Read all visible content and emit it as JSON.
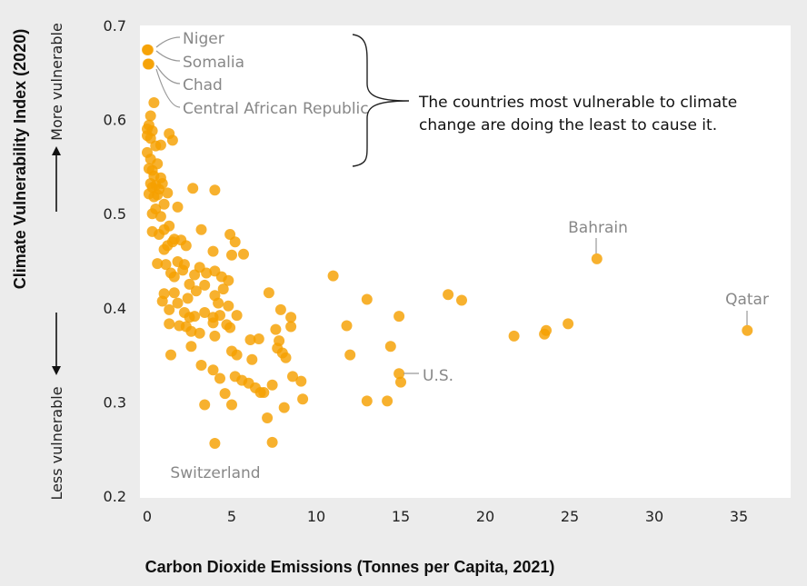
{
  "chart_data": {
    "type": "scatter",
    "xlabel": "Carbon Dioxide Emissions (Tonnes per Capita, 2021)",
    "ylabel": "Climate Vulnerability Index (2020)",
    "xlim": [
      0,
      38
    ],
    "ylim": [
      0.2,
      0.7
    ],
    "xticks": [
      0,
      5,
      10,
      15,
      20,
      25,
      30,
      35
    ],
    "yticks": [
      0.2,
      0.3,
      0.4,
      0.5,
      0.6,
      0.7
    ],
    "grid": false,
    "colors": {
      "point": "#f5a000",
      "point_dense": "#ee7f0a",
      "plot_bg": "#ffffff",
      "page_bg": "#ececec",
      "label": "#888888"
    },
    "more_vulnerable_label": "More vulnerable",
    "less_vulnerable_label": "Less vulnerable",
    "callout_lines": [
      "The countries most vulnerable to climate",
      "change are doing the least to cause it."
    ],
    "labeled_points": [
      {
        "name": "Niger",
        "x": 0.05,
        "y": 0.674
      },
      {
        "name": "Somalia",
        "x": 0.0,
        "y": 0.674
      },
      {
        "name": "Chad",
        "x": 0.1,
        "y": 0.659
      },
      {
        "name": "Central African Republic",
        "x": 0.05,
        "y": 0.659
      },
      {
        "name": "Bahrain",
        "x": 26.6,
        "y": 0.452
      },
      {
        "name": "Qatar",
        "x": 35.5,
        "y": 0.376
      },
      {
        "name": "U.S.",
        "x": 14.9,
        "y": 0.33
      },
      {
        "name": "Switzerland",
        "x": 4.0,
        "y": 0.256
      }
    ],
    "points": [
      [
        0.0,
        0.674
      ],
      [
        0.05,
        0.674
      ],
      [
        0.1,
        0.659
      ],
      [
        0.05,
        0.659
      ],
      [
        0.4,
        0.618
      ],
      [
        0.2,
        0.604
      ],
      [
        0.1,
        0.594
      ],
      [
        0.0,
        0.59
      ],
      [
        0.3,
        0.588
      ],
      [
        0.0,
        0.583
      ],
      [
        0.2,
        0.58
      ],
      [
        0.8,
        0.573
      ],
      [
        0.5,
        0.572
      ],
      [
        1.3,
        0.585
      ],
      [
        1.5,
        0.578
      ],
      [
        0.0,
        0.565
      ],
      [
        0.2,
        0.558
      ],
      [
        0.1,
        0.548
      ],
      [
        0.6,
        0.553
      ],
      [
        0.3,
        0.546
      ],
      [
        0.4,
        0.54
      ],
      [
        0.8,
        0.538
      ],
      [
        0.2,
        0.532
      ],
      [
        0.5,
        0.53
      ],
      [
        0.3,
        0.528
      ],
      [
        0.7,
        0.526
      ],
      [
        0.9,
        0.532
      ],
      [
        0.1,
        0.521
      ],
      [
        0.4,
        0.518
      ],
      [
        0.6,
        0.52
      ],
      [
        1.2,
        0.522
      ],
      [
        1.0,
        0.51
      ],
      [
        0.5,
        0.505
      ],
      [
        0.3,
        0.5
      ],
      [
        1.8,
        0.507
      ],
      [
        0.8,
        0.497
      ],
      [
        2.7,
        0.527
      ],
      [
        4.0,
        0.525
      ],
      [
        1.3,
        0.487
      ],
      [
        1.0,
        0.483
      ],
      [
        0.7,
        0.478
      ],
      [
        0.3,
        0.481
      ],
      [
        1.6,
        0.473
      ],
      [
        1.5,
        0.47
      ],
      [
        1.2,
        0.466
      ],
      [
        2.0,
        0.472
      ],
      [
        2.3,
        0.466
      ],
      [
        1.0,
        0.462
      ],
      [
        3.2,
        0.483
      ],
      [
        4.9,
        0.478
      ],
      [
        5.2,
        0.47
      ],
      [
        5.7,
        0.457
      ],
      [
        3.9,
        0.46
      ],
      [
        5.0,
        0.456
      ],
      [
        0.6,
        0.447
      ],
      [
        1.1,
        0.446
      ],
      [
        1.8,
        0.449
      ],
      [
        2.2,
        0.446
      ],
      [
        1.4,
        0.437
      ],
      [
        2.1,
        0.44
      ],
      [
        1.6,
        0.433
      ],
      [
        2.8,
        0.435
      ],
      [
        3.1,
        0.443
      ],
      [
        3.5,
        0.437
      ],
      [
        4.0,
        0.439
      ],
      [
        4.4,
        0.433
      ],
      [
        4.8,
        0.429
      ],
      [
        1.0,
        0.415
      ],
      [
        1.6,
        0.416
      ],
      [
        2.5,
        0.425
      ],
      [
        2.9,
        0.418
      ],
      [
        3.4,
        0.424
      ],
      [
        4.0,
        0.413
      ],
      [
        4.5,
        0.42
      ],
      [
        2.4,
        0.41
      ],
      [
        0.9,
        0.407
      ],
      [
        1.8,
        0.405
      ],
      [
        4.2,
        0.405
      ],
      [
        4.8,
        0.402
      ],
      [
        1.3,
        0.398
      ],
      [
        2.2,
        0.395
      ],
      [
        2.5,
        0.39
      ],
      [
        2.8,
        0.391
      ],
      [
        3.4,
        0.395
      ],
      [
        3.9,
        0.39
      ],
      [
        4.3,
        0.392
      ],
      [
        5.3,
        0.392
      ],
      [
        1.3,
        0.383
      ],
      [
        1.9,
        0.381
      ],
      [
        2.3,
        0.38
      ],
      [
        2.6,
        0.375
      ],
      [
        3.1,
        0.373
      ],
      [
        3.9,
        0.384
      ],
      [
        4.7,
        0.382
      ],
      [
        4.9,
        0.379
      ],
      [
        4.0,
        0.37
      ],
      [
        6.1,
        0.366
      ],
      [
        6.6,
        0.367
      ],
      [
        7.6,
        0.377
      ],
      [
        7.2,
        0.416
      ],
      [
        7.9,
        0.398
      ],
      [
        8.5,
        0.39
      ],
      [
        8.5,
        0.38
      ],
      [
        7.8,
        0.365
      ],
      [
        8.0,
        0.352
      ],
      [
        8.2,
        0.347
      ],
      [
        7.7,
        0.357
      ],
      [
        1.4,
        0.35
      ],
      [
        2.6,
        0.359
      ],
      [
        5.0,
        0.354
      ],
      [
        5.3,
        0.35
      ],
      [
        6.2,
        0.345
      ],
      [
        3.2,
        0.339
      ],
      [
        3.9,
        0.334
      ],
      [
        5.2,
        0.327
      ],
      [
        5.6,
        0.323
      ],
      [
        6.0,
        0.32
      ],
      [
        6.4,
        0.315
      ],
      [
        4.3,
        0.325
      ],
      [
        7.4,
        0.318
      ],
      [
        8.6,
        0.327
      ],
      [
        9.1,
        0.322
      ],
      [
        6.7,
        0.31
      ],
      [
        6.9,
        0.31
      ],
      [
        4.6,
        0.309
      ],
      [
        7.1,
        0.283
      ],
      [
        8.1,
        0.294
      ],
      [
        9.2,
        0.303
      ],
      [
        5.0,
        0.297
      ],
      [
        3.4,
        0.297
      ],
      [
        7.4,
        0.257
      ],
      [
        4.0,
        0.256
      ],
      [
        11.0,
        0.434
      ],
      [
        11.8,
        0.381
      ],
      [
        12.0,
        0.35
      ],
      [
        13.0,
        0.409
      ],
      [
        13.0,
        0.301
      ],
      [
        14.2,
        0.301
      ],
      [
        14.4,
        0.359
      ],
      [
        14.9,
        0.33
      ],
      [
        14.9,
        0.391
      ],
      [
        15.0,
        0.321
      ],
      [
        17.8,
        0.414
      ],
      [
        18.6,
        0.408
      ],
      [
        21.7,
        0.37
      ],
      [
        23.5,
        0.372
      ],
      [
        23.6,
        0.376
      ],
      [
        24.9,
        0.383
      ],
      [
        26.6,
        0.452
      ],
      [
        35.5,
        0.376
      ]
    ]
  }
}
